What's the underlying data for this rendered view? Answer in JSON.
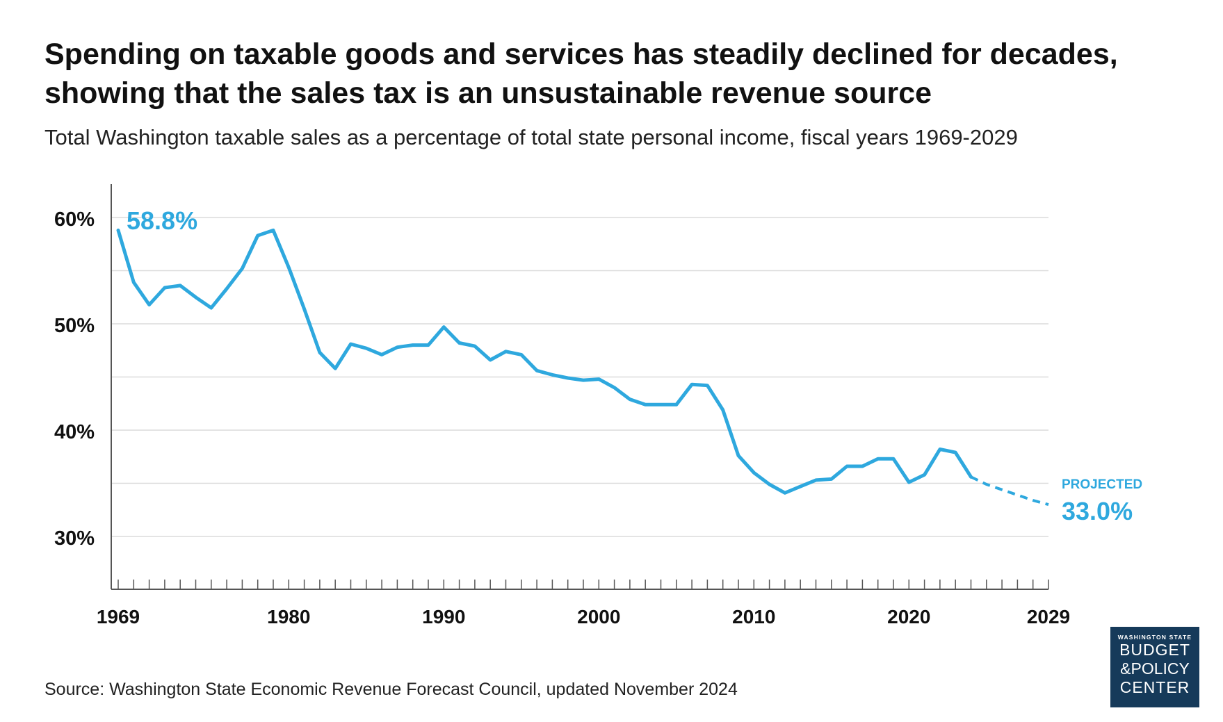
{
  "header": {
    "title": "Spending on taxable goods and services has steadily declined for decades, showing that the sales tax is an unsustainable revenue source",
    "subtitle": "Total Washington taxable sales as a percentage of total state personal income, fiscal years 1969-2029"
  },
  "footer": {
    "source": "Source: Washington State Economic Revenue Forecast Council, updated November 2024"
  },
  "logo": {
    "line1": "WASHINGTON STATE",
    "line2": "BUDGET",
    "line3": "&POLICY",
    "line4": "CENTER"
  },
  "colors": {
    "series": "#2ea8de",
    "grid": "#dcdcdc",
    "axis": "#555555",
    "logo_bg": "#163a5a"
  },
  "chart_data": {
    "type": "line",
    "title": "Spending on taxable goods and services has steadily declined for decades, showing that the sales tax is an unsustainable revenue source",
    "subtitle": "Total Washington taxable sales as a percentage of total state personal income, fiscal years 1969-2029",
    "xlabel": "",
    "ylabel": "",
    "xlim": [
      1969,
      2029
    ],
    "ylim": [
      27,
      63
    ],
    "y_ticks": [
      30,
      40,
      50,
      60
    ],
    "y_tick_labels": [
      "30%",
      "40%",
      "50%",
      "60%"
    ],
    "x_ticks": [
      1969,
      1980,
      1990,
      2000,
      2010,
      2020,
      2029
    ],
    "x_tick_labels": [
      "1969",
      "1980",
      "1990",
      "2000",
      "2010",
      "2020",
      "2029"
    ],
    "grid": true,
    "actual": {
      "x": [
        1969,
        1970,
        1971,
        1972,
        1973,
        1974,
        1975,
        1976,
        1977,
        1978,
        1979,
        1980,
        1981,
        1982,
        1983,
        1984,
        1985,
        1986,
        1987,
        1988,
        1989,
        1990,
        1991,
        1992,
        1993,
        1994,
        1995,
        1996,
        1997,
        1998,
        1999,
        2000,
        2001,
        2002,
        2003,
        2004,
        2005,
        2006,
        2007,
        2008,
        2009,
        2010,
        2011,
        2012,
        2013,
        2014,
        2015,
        2016,
        2017,
        2018,
        2019,
        2020,
        2021,
        2022,
        2023,
        2024
      ],
      "y": [
        58.8,
        53.9,
        51.8,
        53.4,
        53.6,
        52.5,
        51.5,
        53.3,
        55.2,
        58.3,
        58.8,
        55.3,
        51.4,
        47.3,
        45.8,
        48.1,
        47.7,
        47.1,
        47.8,
        48.0,
        48.0,
        49.7,
        48.2,
        47.9,
        46.6,
        47.4,
        47.1,
        45.6,
        45.2,
        44.9,
        44.7,
        44.8,
        44.0,
        42.9,
        42.4,
        42.4,
        42.4,
        44.3,
        44.2,
        41.9,
        37.6,
        36.0,
        34.9,
        34.1,
        34.7,
        35.3,
        35.4,
        36.6,
        36.6,
        37.3,
        37.3,
        35.1,
        35.8,
        38.2,
        37.9,
        35.6
      ]
    },
    "projected": {
      "x": [
        2024,
        2025,
        2026,
        2027,
        2028,
        2029
      ],
      "y": [
        35.6,
        34.9,
        34.4,
        33.9,
        33.4,
        33.0
      ]
    },
    "annotations": {
      "start_value": "58.8%",
      "end_label": "PROJECTED",
      "end_value": "33.0%"
    }
  }
}
